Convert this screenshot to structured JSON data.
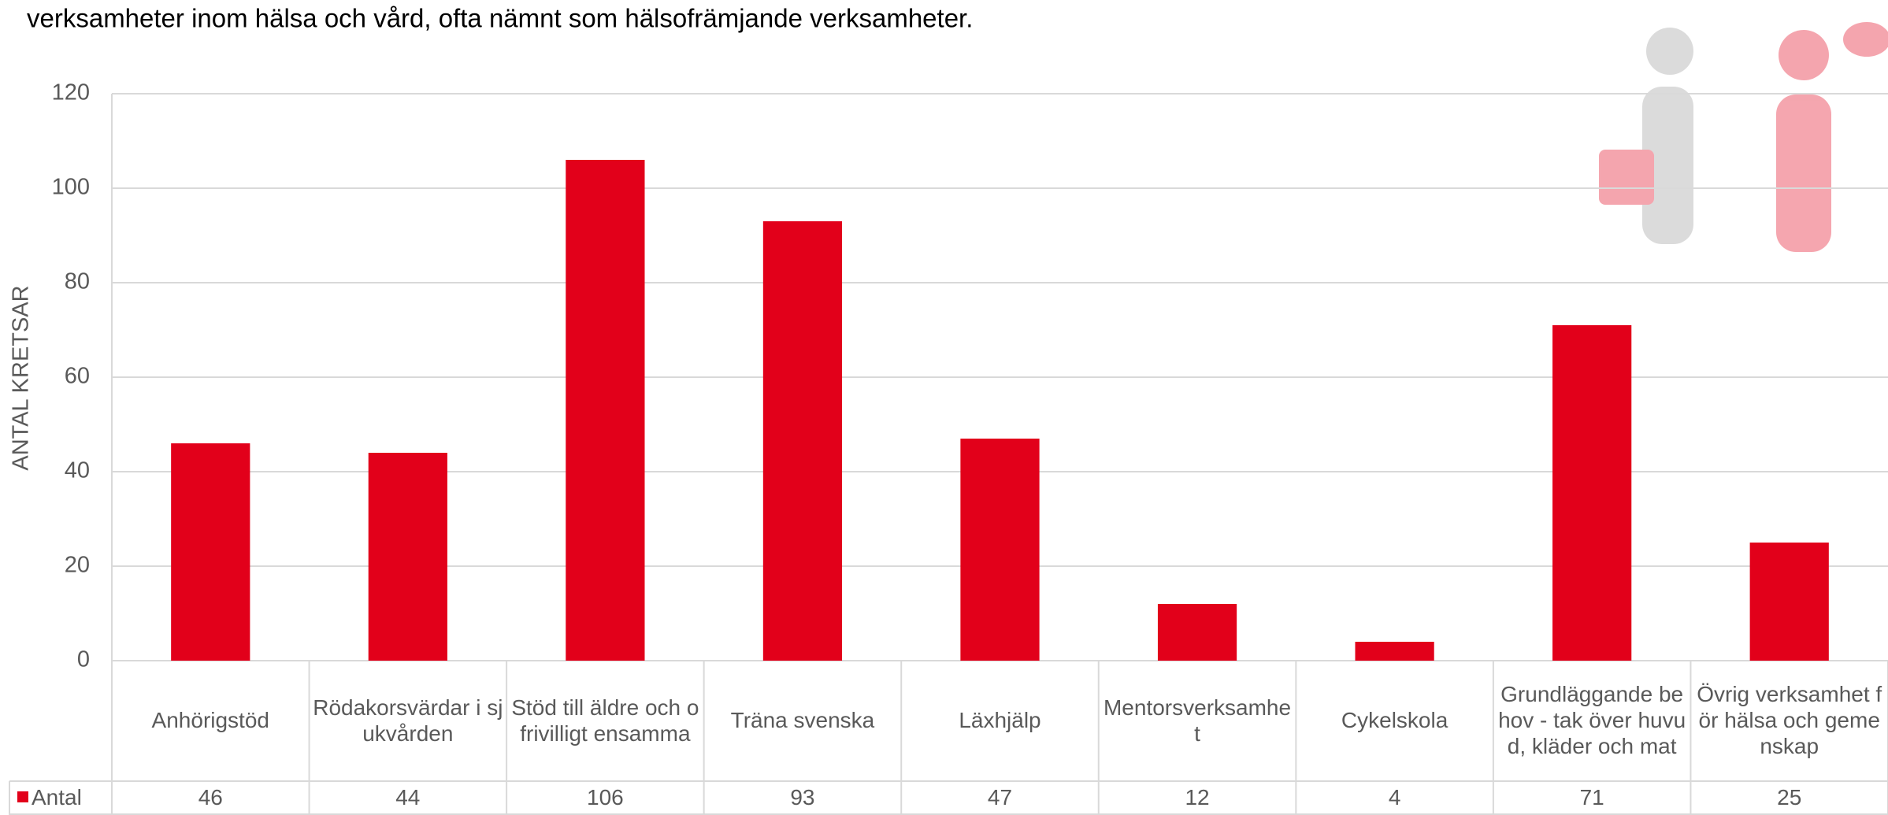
{
  "chart_data": {
    "type": "bar",
    "title": "verksamheter inom hälsa och vård, ofta nämnt som hälsofrämjande  verksamheter.",
    "y_label": "ANTAL KRETSAR",
    "categories": [
      "Anhörigstöd",
      "Rödakorsvärdar i sjukvården",
      "Stöd till äldre och ofrivilligt ensamma",
      "Träna svenska",
      "Läxhjälp",
      "Mentorsverksamhet",
      "Cykelskola",
      "Grundläggande behov - tak över huvud, kläder och mat",
      "Övrig verksamhet för hälsa och gemenskap"
    ],
    "series": [
      {
        "name": "Antal",
        "color": "#e2001a",
        "values": [
          46,
          44,
          106,
          93,
          47,
          12,
          4,
          71,
          25
        ]
      }
    ],
    "ylim": [
      0,
      120
    ],
    "yticks": [
      0,
      20,
      40,
      60,
      80,
      100,
      120
    ],
    "grid": true
  }
}
